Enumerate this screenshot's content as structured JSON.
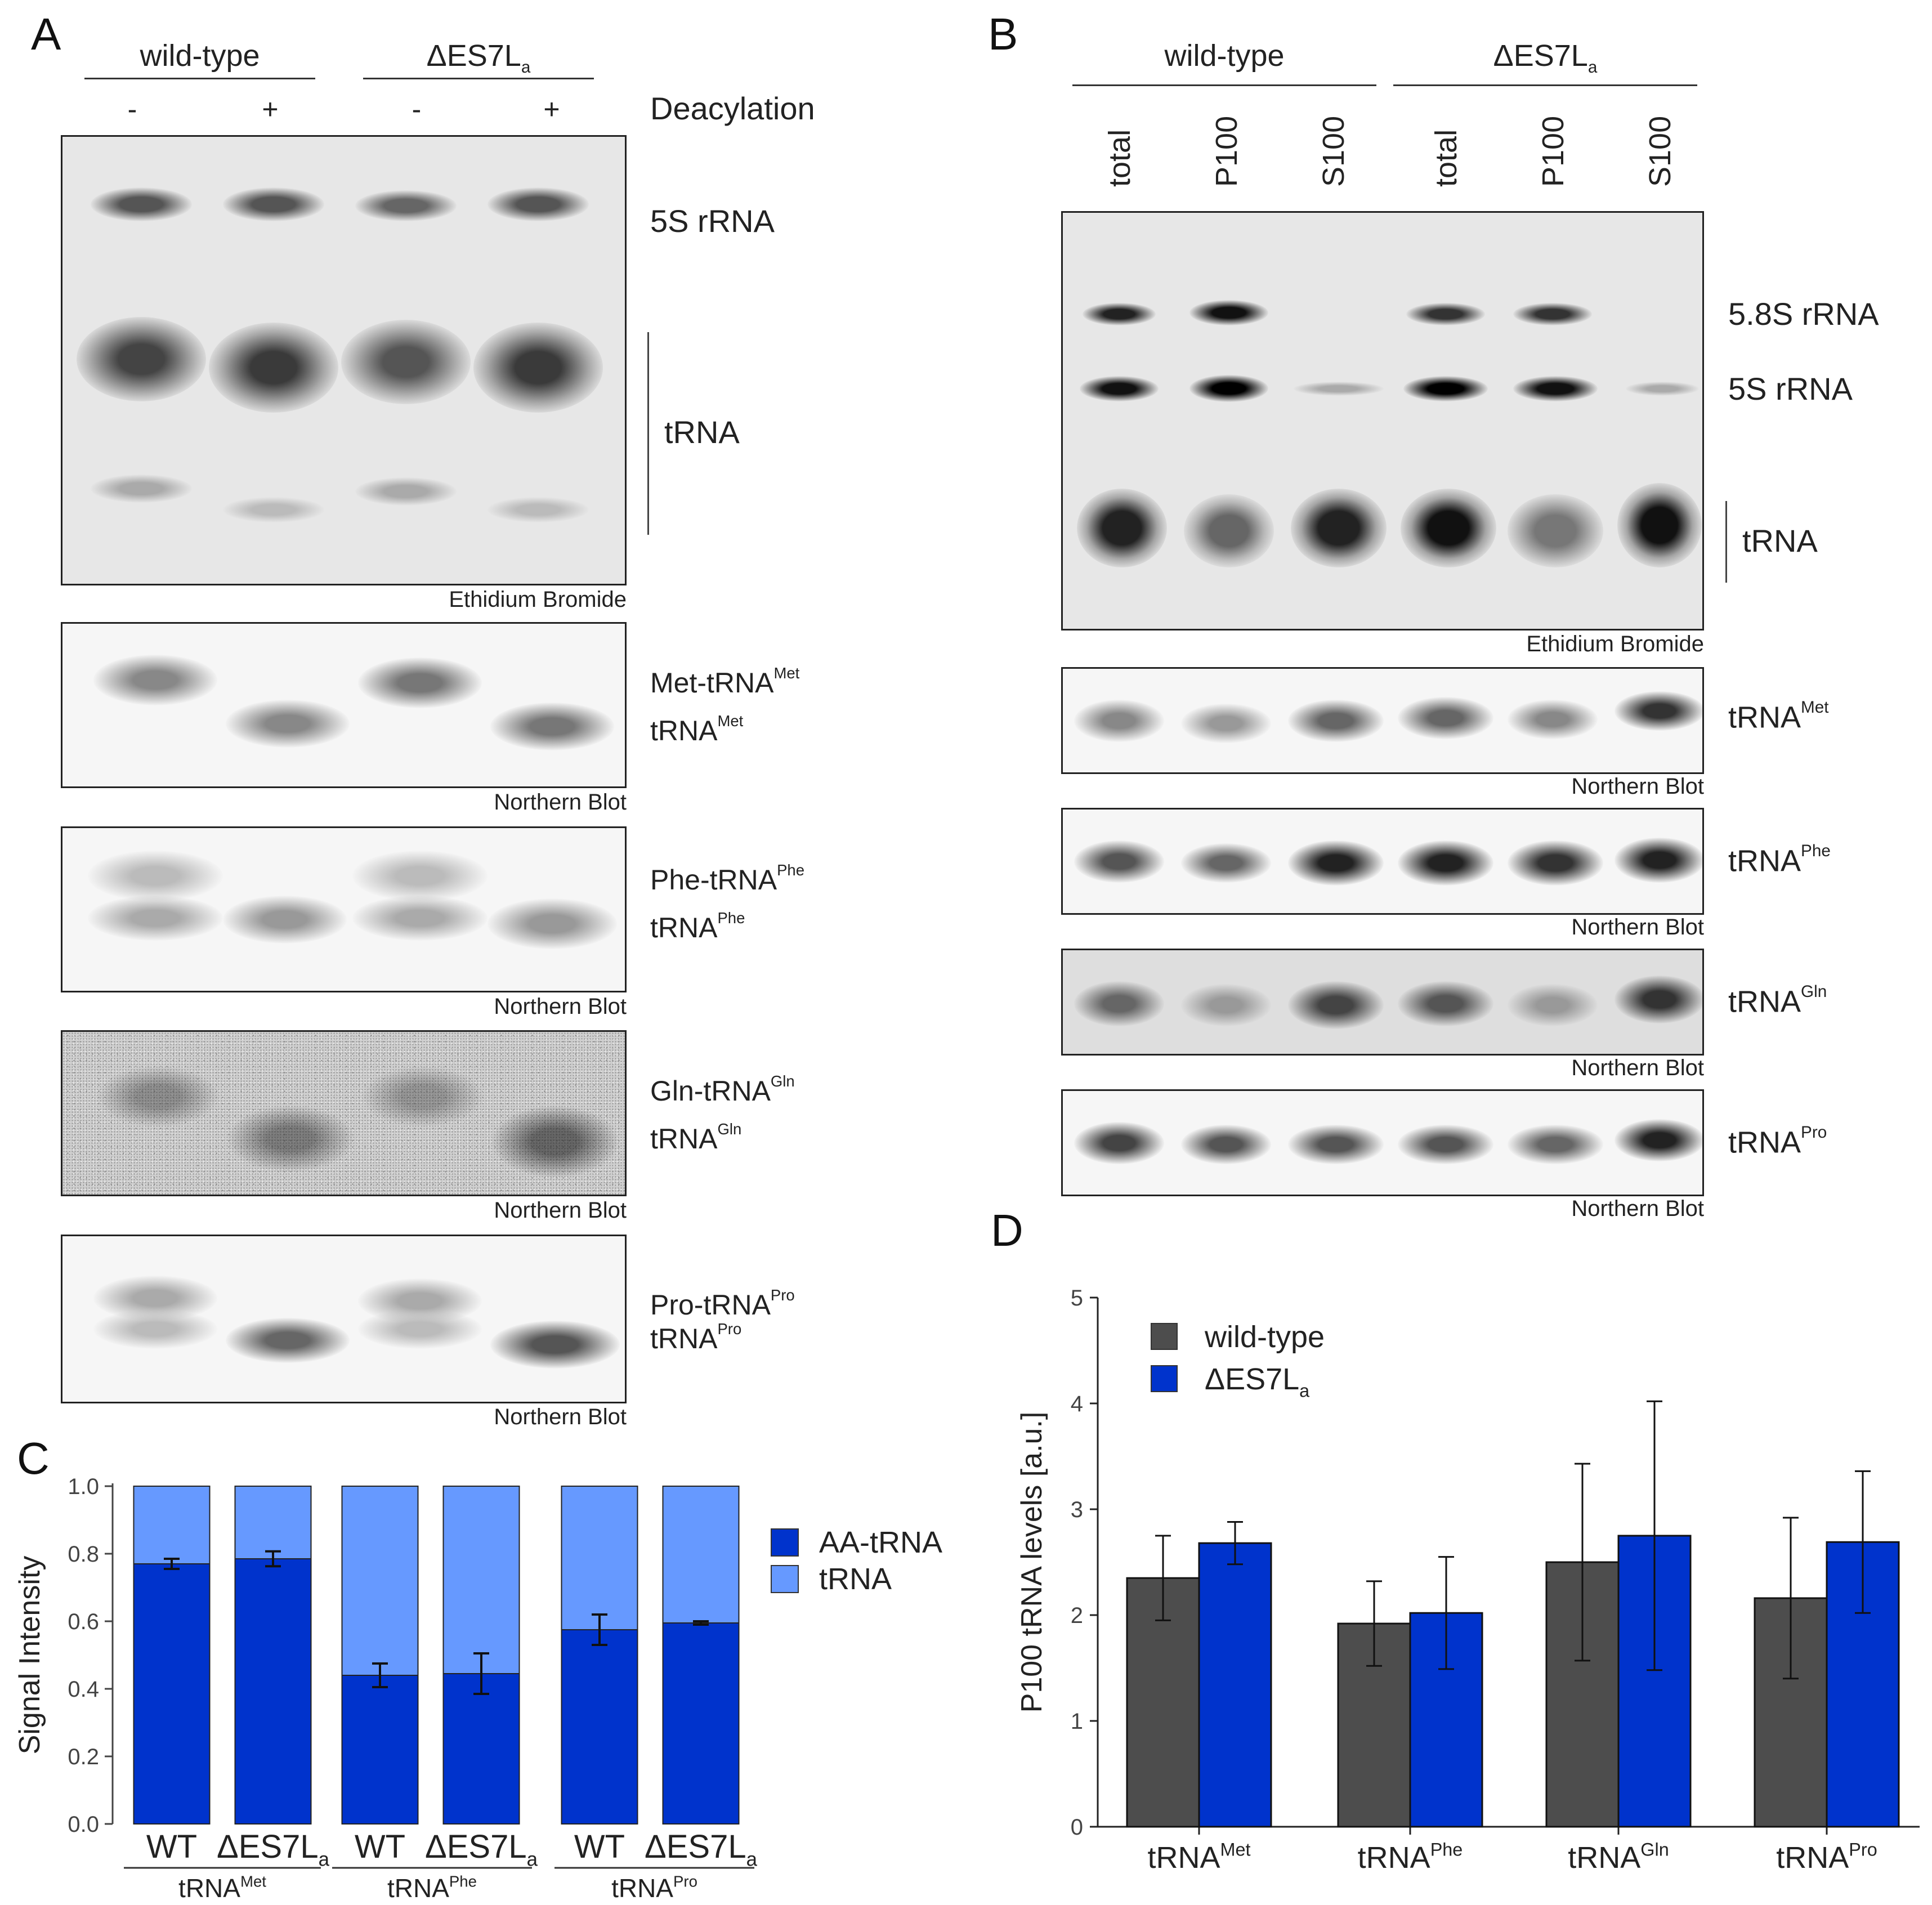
{
  "panelA": {
    "label": "A",
    "header_wt": "wild-type",
    "header_mut": "ΔES7L",
    "header_mut_sub": "a",
    "signs": [
      "-",
      "+",
      "-",
      "+"
    ],
    "deacylation": "Deacylation",
    "eth_5s": "5S rRNA",
    "eth_trna": "tRNA",
    "eth_caption": "Ethidium Bromide",
    "northern_caption": "Northern Blot",
    "met_charged": "Met-tRNA",
    "met_charged_sup": "Met",
    "met_free": "tRNA",
    "met_free_sup": "Met",
    "phe_charged": "Phe-tRNA",
    "phe_charged_sup": "Phe",
    "phe_free": "tRNA",
    "phe_free_sup": "Phe",
    "gln_charged": "Gln-tRNA",
    "gln_charged_sup": "Gln",
    "gln_free": "tRNA",
    "gln_free_sup": "Gln",
    "pro_charged": "Pro-tRNA",
    "pro_charged_sup": "Pro",
    "pro_free": "tRNA",
    "pro_free_sup": "Pro"
  },
  "panelB": {
    "label": "B",
    "header_wt": "wild-type",
    "header_mut": "ΔES7L",
    "header_mut_sub": "a",
    "lanes": [
      "total",
      "P100",
      "S100",
      "total",
      "P100",
      "S100"
    ],
    "eth_58s": "5.8S rRNA",
    "eth_5s": "5S rRNA",
    "eth_trna": "tRNA",
    "eth_caption": "Ethidium Bromide",
    "northern_caption": "Northern Blot",
    "met": "tRNA",
    "met_sup": "Met",
    "phe": "tRNA",
    "phe_sup": "Phe",
    "gln": "tRNA",
    "gln_sup": "Gln",
    "pro": "tRNA",
    "pro_sup": "Pro"
  },
  "panelC": {
    "label": "C"
  },
  "panelD": {
    "label": "D"
  },
  "colors": {
    "dark_blue": "#0033cc",
    "light_blue": "#6699ff",
    "gray": "#4d4d4d"
  },
  "chart_data": [
    {
      "type": "bar",
      "stacked": true,
      "ylabel": "Signal Intensity",
      "ylim": [
        0,
        1.0
      ],
      "yticks": [
        "0.0",
        "0.2",
        "0.4",
        "0.6",
        "0.8",
        "1.0"
      ],
      "categories": [
        "WT",
        "ΔES7La",
        "WT",
        "ΔES7La",
        "WT",
        "ΔES7La"
      ],
      "category_labels": [
        {
          "main": "WT",
          "sub": ""
        },
        {
          "main": "ΔES7L",
          "sub": "a"
        },
        {
          "main": "WT",
          "sub": ""
        },
        {
          "main": "ΔES7L",
          "sub": "a"
        },
        {
          "main": "WT",
          "sub": ""
        },
        {
          "main": "ΔES7L",
          "sub": "a"
        }
      ],
      "groups": [
        {
          "main": "tRNA",
          "sup": "Met"
        },
        {
          "main": "tRNA",
          "sup": "Phe"
        },
        {
          "main": "tRNA",
          "sup": "Pro"
        }
      ],
      "series": [
        {
          "name": "AA-tRNA",
          "values": [
            0.77,
            0.785,
            0.44,
            0.445,
            0.575,
            0.595
          ],
          "error": [
            0.015,
            0.022,
            0.035,
            0.06,
            0.045,
            0.005
          ]
        },
        {
          "name": "tRNA",
          "values": [
            0.23,
            0.215,
            0.56,
            0.555,
            0.425,
            0.405
          ]
        }
      ]
    },
    {
      "type": "bar",
      "ylabel": "P100 tRNA levels [a.u.]",
      "ylim": [
        0,
        5
      ],
      "yticks": [
        "0",
        "1",
        "2",
        "3",
        "4",
        "5"
      ],
      "categories": [
        "tRNAMet",
        "tRNAPhe",
        "tRNAGln",
        "tRNAPro"
      ],
      "category_labels": [
        {
          "main": "tRNA",
          "sup": "Met"
        },
        {
          "main": "tRNA",
          "sup": "Phe"
        },
        {
          "main": "tRNA",
          "sup": "Gln"
        },
        {
          "main": "tRNA",
          "sup": "Pro"
        }
      ],
      "legend": [
        {
          "main": "wild-type",
          "sub": ""
        },
        {
          "main": "ΔES7L",
          "sub": "a"
        }
      ],
      "series": [
        {
          "name": "wild-type",
          "values": [
            2.35,
            1.92,
            2.5,
            2.16
          ],
          "error": [
            0.4,
            0.4,
            0.93,
            0.76
          ]
        },
        {
          "name": "ΔES7La",
          "values": [
            2.68,
            2.02,
            2.75,
            2.69
          ],
          "error": [
            0.2,
            0.53,
            1.27,
            0.67
          ]
        }
      ]
    }
  ]
}
